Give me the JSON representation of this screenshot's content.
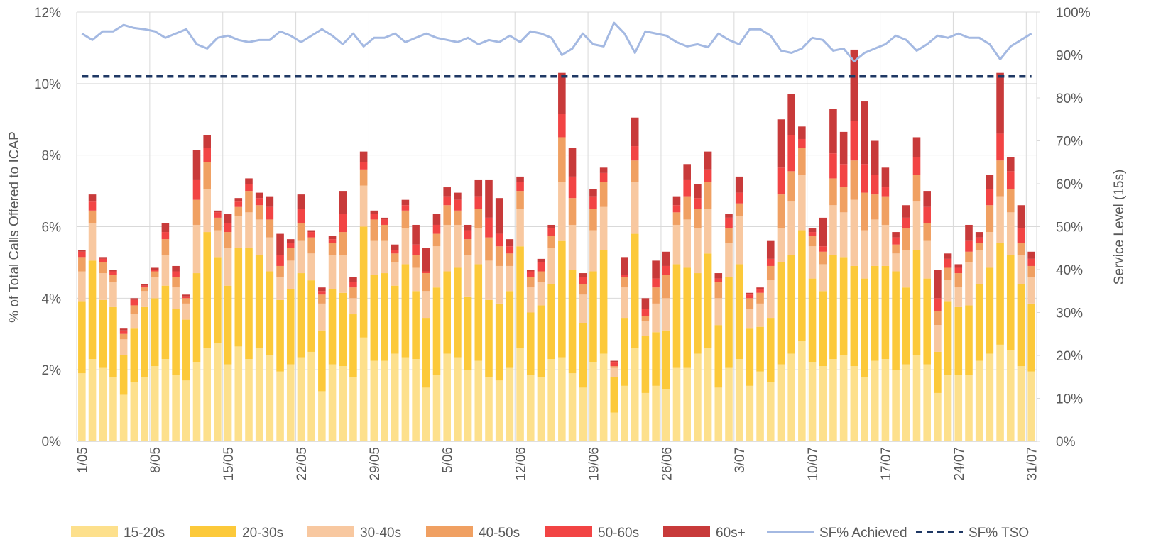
{
  "chart_data": {
    "type": "bar",
    "stacked": true,
    "y_label": "% of Total Calls Offered to ICAP",
    "y2_label": "Service Level (15s)",
    "categories": [
      "1/05",
      null,
      null,
      null,
      null,
      null,
      null,
      "8/05",
      null,
      null,
      null,
      null,
      null,
      null,
      "15/05",
      null,
      null,
      null,
      null,
      null,
      null,
      "22/05",
      null,
      null,
      null,
      null,
      null,
      null,
      "29/05",
      null,
      null,
      null,
      null,
      null,
      null,
      "5/06",
      null,
      null,
      null,
      null,
      null,
      null,
      "12/06",
      null,
      null,
      null,
      null,
      null,
      null,
      "19/06",
      null,
      null,
      null,
      null,
      null,
      null,
      "26/06",
      null,
      null,
      null,
      null,
      null,
      null,
      "3/07",
      null,
      null,
      null,
      null,
      null,
      null,
      "10/07",
      null,
      null,
      null,
      null,
      null,
      null,
      "17/07",
      null,
      null,
      null,
      null,
      null,
      null,
      "24/07",
      null,
      null,
      null,
      null,
      null,
      null,
      "31/07"
    ],
    "ylim": [
      0,
      12
    ],
    "yticks": [
      {
        "value": 0,
        "label": "0%"
      },
      {
        "value": 2,
        "label": "2%"
      },
      {
        "value": 4,
        "label": "4%"
      },
      {
        "value": 6,
        "label": "6%"
      },
      {
        "value": 8,
        "label": "8%"
      },
      {
        "value": 10,
        "label": "10%"
      },
      {
        "value": 12,
        "label": "12%"
      }
    ],
    "y2lim": [
      0,
      100
    ],
    "y2ticks": [
      {
        "value": 0,
        "label": "0%"
      },
      {
        "value": 10,
        "label": "10%"
      },
      {
        "value": 20,
        "label": "20%"
      },
      {
        "value": 30,
        "label": "30%"
      },
      {
        "value": 40,
        "label": "40%"
      },
      {
        "value": 50,
        "label": "50%"
      },
      {
        "value": 60,
        "label": "60%"
      },
      {
        "value": 70,
        "label": "70%"
      },
      {
        "value": 80,
        "label": "80%"
      },
      {
        "value": 90,
        "label": "90%"
      },
      {
        "value": 100,
        "label": "100%"
      }
    ],
    "grid": true,
    "legend": "bottom",
    "series": [
      {
        "name": "15-20s",
        "color": "#fde08c",
        "values": [
          1.9,
          2.3,
          2.05,
          1.8,
          1.3,
          1.65,
          1.8,
          2.1,
          2.3,
          1.85,
          1.7,
          2.2,
          2.6,
          2.75,
          2.15,
          2.65,
          2.3,
          2.6,
          2.4,
          1.95,
          2.15,
          2.35,
          2.5,
          1.4,
          2.15,
          2.1,
          1.8,
          2.9,
          2.25,
          2.25,
          2.45,
          2.35,
          2.3,
          1.5,
          1.85,
          2.45,
          2.35,
          2.0,
          2.25,
          1.8,
          1.7,
          2.05,
          2.6,
          1.85,
          1.8,
          2.3,
          2.35,
          1.9,
          1.5,
          2.2,
          2.45,
          0.8,
          1.55,
          2.6,
          1.35,
          1.55,
          1.45,
          2.05,
          2.05,
          2.45,
          2.6,
          1.5,
          2.05,
          2.3,
          1.55,
          1.95,
          1.65,
          2.15,
          2.45,
          2.8,
          2.2,
          2.1,
          2.3,
          2.4,
          2.1,
          1.8,
          2.25,
          2.3,
          2.0,
          2.15,
          2.4,
          2.15,
          1.35,
          1.85,
          1.85,
          1.85,
          2.25,
          2.45,
          2.7,
          2.55,
          2.1,
          1.95
        ]
      },
      {
        "name": "20-30s",
        "color": "#fcc93a",
        "values": [
          2.0,
          2.75,
          1.9,
          1.95,
          1.1,
          1.5,
          1.95,
          1.9,
          2.05,
          1.85,
          1.7,
          2.5,
          3.25,
          2.4,
          2.2,
          2.75,
          3.1,
          2.6,
          2.35,
          2.0,
          2.1,
          2.35,
          2.0,
          1.7,
          2.1,
          2.05,
          1.75,
          3.1,
          2.4,
          2.45,
          1.9,
          2.6,
          1.9,
          1.95,
          2.45,
          2.3,
          2.5,
          2.05,
          2.7,
          2.15,
          2.15,
          2.15,
          2.85,
          1.75,
          2.0,
          2.1,
          3.25,
          2.9,
          1.8,
          2.55,
          2.9,
          1.0,
          1.9,
          3.2,
          1.6,
          1.5,
          1.65,
          2.9,
          2.8,
          2.25,
          2.65,
          1.75,
          2.55,
          2.65,
          1.6,
          1.25,
          1.8,
          2.85,
          2.75,
          3.1,
          2.35,
          2.1,
          2.9,
          2.75,
          2.8,
          2.75,
          2.65,
          2.6,
          2.75,
          2.15,
          2.95,
          2.4,
          1.15,
          2.05,
          1.9,
          1.95,
          2.15,
          2.4,
          2.85,
          2.65,
          2.3,
          1.9
        ]
      },
      {
        "name": "30-40s",
        "color": "#f8c8a0",
        "values": [
          0.85,
          1.05,
          0.75,
          0.7,
          0.45,
          0.4,
          0.45,
          0.6,
          0.85,
          0.6,
          0.45,
          1.35,
          1.2,
          0.75,
          1.05,
          0.9,
          1.0,
          1.0,
          0.95,
          0.65,
          0.8,
          0.9,
          0.75,
          0.75,
          0.95,
          1.05,
          0.45,
          1.15,
          0.95,
          0.9,
          0.65,
          1.0,
          0.65,
          0.75,
          1.15,
          1.3,
          1.2,
          1.15,
          1.0,
          1.1,
          1.05,
          0.7,
          1.05,
          0.7,
          0.65,
          1.0,
          1.65,
          1.25,
          0.8,
          1.15,
          1.2,
          0.25,
          0.85,
          1.45,
          0.4,
          0.8,
          0.9,
          1.1,
          1.35,
          1.25,
          1.25,
          0.75,
          0.95,
          1.35,
          0.55,
          0.65,
          1.05,
          0.95,
          1.5,
          1.55,
          0.9,
          0.75,
          1.4,
          1.25,
          1.85,
          1.35,
          1.3,
          1.15,
          0.5,
          1.05,
          1.35,
          1.05,
          0.75,
          0.6,
          0.55,
          1.2,
          0.95,
          1.0,
          1.3,
          1.2,
          0.8,
          0.75
        ]
      },
      {
        "name": "40-50s",
        "color": "#f0a062",
        "values": [
          0.4,
          0.35,
          0.3,
          0.2,
          0.15,
          0.25,
          0.1,
          0.15,
          0.45,
          0.3,
          0.15,
          0.7,
          0.75,
          0.35,
          0.45,
          0.25,
          0.6,
          0.4,
          0.5,
          0.3,
          0.35,
          0.5,
          0.45,
          0.25,
          0.35,
          0.65,
          0.3,
          0.45,
          0.6,
          0.45,
          0.25,
          0.5,
          0.35,
          0.5,
          0.35,
          0.55,
          0.4,
          0.45,
          0.55,
          0.65,
          0.55,
          0.35,
          0.5,
          0.3,
          0.3,
          0.35,
          1.25,
          0.75,
          0.3,
          0.6,
          0.7,
          0.05,
          0.3,
          0.6,
          0.15,
          0.45,
          0.65,
          0.35,
          0.65,
          0.55,
          0.75,
          0.45,
          0.4,
          0.35,
          0.3,
          0.3,
          0.4,
          0.95,
          0.85,
          0.75,
          0.3,
          0.35,
          0.75,
          0.7,
          1.1,
          1.05,
          0.7,
          0.8,
          0.25,
          0.6,
          0.75,
          0.5,
          0.4,
          0.35,
          0.4,
          0.3,
          0.2,
          0.75,
          1.0,
          0.65,
          0.35,
          0.3
        ]
      },
      {
        "name": "50-60s",
        "color": "#f24444",
        "values": [
          0.15,
          0.25,
          0.1,
          0.1,
          0.1,
          0.15,
          0.05,
          0.05,
          0.2,
          0.15,
          0.05,
          0.55,
          0.4,
          0.15,
          0.25,
          0.15,
          0.2,
          0.2,
          0.35,
          0.3,
          0.15,
          0.4,
          0.15,
          0.1,
          0.1,
          0.5,
          0.15,
          0.2,
          0.15,
          0.15,
          0.1,
          0.15,
          0.3,
          0.05,
          0.25,
          0.25,
          0.3,
          0.25,
          0.35,
          0.55,
          0.35,
          0.2,
          0.25,
          0.15,
          0.25,
          0.2,
          0.65,
          0.6,
          0.2,
          0.35,
          0.25,
          0.1,
          0.05,
          0.4,
          0.2,
          0.25,
          0.25,
          0.2,
          0.45,
          0.3,
          0.35,
          0.1,
          0.3,
          0.3,
          0.1,
          0.1,
          0.2,
          0.75,
          1.0,
          0.25,
          0.1,
          0.15,
          0.7,
          0.65,
          1.1,
          0.8,
          0.55,
          0.25,
          0.2,
          0.3,
          0.5,
          0.45,
          0.35,
          0.25,
          0.15,
          0.3,
          0.15,
          0.45,
          0.75,
          0.5,
          0.4,
          0.2
        ]
      },
      {
        "name": "60s+",
        "color": "#c83a3a",
        "values": [
          0.05,
          0.2,
          0.05,
          0.05,
          0.05,
          0.05,
          0.05,
          0.05,
          0.25,
          0.15,
          0.05,
          0.85,
          0.35,
          0.05,
          0.25,
          0.1,
          0.15,
          0.15,
          0.3,
          0.6,
          0.1,
          0.4,
          0.05,
          0.1,
          0.1,
          0.65,
          0.15,
          0.3,
          0.1,
          0.05,
          0.15,
          0.15,
          0.55,
          0.65,
          0.3,
          0.25,
          0.2,
          0.15,
          0.45,
          1.05,
          1.0,
          0.2,
          0.15,
          0.05,
          0.1,
          0.1,
          1.15,
          0.8,
          0.1,
          0.2,
          0.15,
          0.05,
          0.5,
          0.8,
          0.3,
          0.5,
          0.4,
          0.25,
          0.45,
          0.4,
          0.5,
          0.15,
          0.1,
          0.45,
          0.05,
          0.05,
          0.5,
          1.35,
          1.15,
          0.35,
          0.1,
          0.8,
          1.25,
          0.9,
          2.0,
          1.75,
          0.95,
          0.55,
          0.15,
          0.35,
          0.55,
          0.45,
          0.8,
          0.15,
          0.1,
          0.45,
          0.15,
          0.4,
          1.7,
          0.4,
          0.65,
          0.2
        ]
      },
      {
        "name": "SF% Achieved",
        "type": "line",
        "axis": "y2",
        "color": "#a4b9e2",
        "values": [
          95,
          93.5,
          95.5,
          95.5,
          97,
          96.3,
          96,
          95.5,
          94,
          95,
          96,
          92.5,
          91.5,
          94,
          94.5,
          93.5,
          93,
          93.5,
          93.5,
          95.5,
          94.5,
          93,
          94.5,
          96,
          94.5,
          92.5,
          95,
          92,
          94,
          94,
          95,
          93,
          94,
          95,
          94,
          93.5,
          93,
          94,
          92.5,
          93.5,
          93,
          94.5,
          93,
          95.5,
          95,
          94,
          90,
          91.5,
          95,
          92.5,
          92,
          97.5,
          95,
          90.5,
          95.5,
          95,
          94.5,
          93,
          92,
          92.5,
          91.8,
          95,
          93.5,
          92.5,
          96,
          96,
          94.5,
          91,
          90.5,
          91.5,
          94,
          93.5,
          91,
          91.5,
          88.5,
          90.5,
          91.5,
          92.5,
          94.5,
          93.5,
          91,
          92.5,
          94.5,
          94,
          95,
          94,
          94,
          92.5,
          89,
          92,
          93.5,
          95
        ]
      },
      {
        "name": "SF% TSO",
        "type": "hline",
        "axis": "y2",
        "color": "#1f3864",
        "dashed": true,
        "value": 85
      }
    ]
  }
}
